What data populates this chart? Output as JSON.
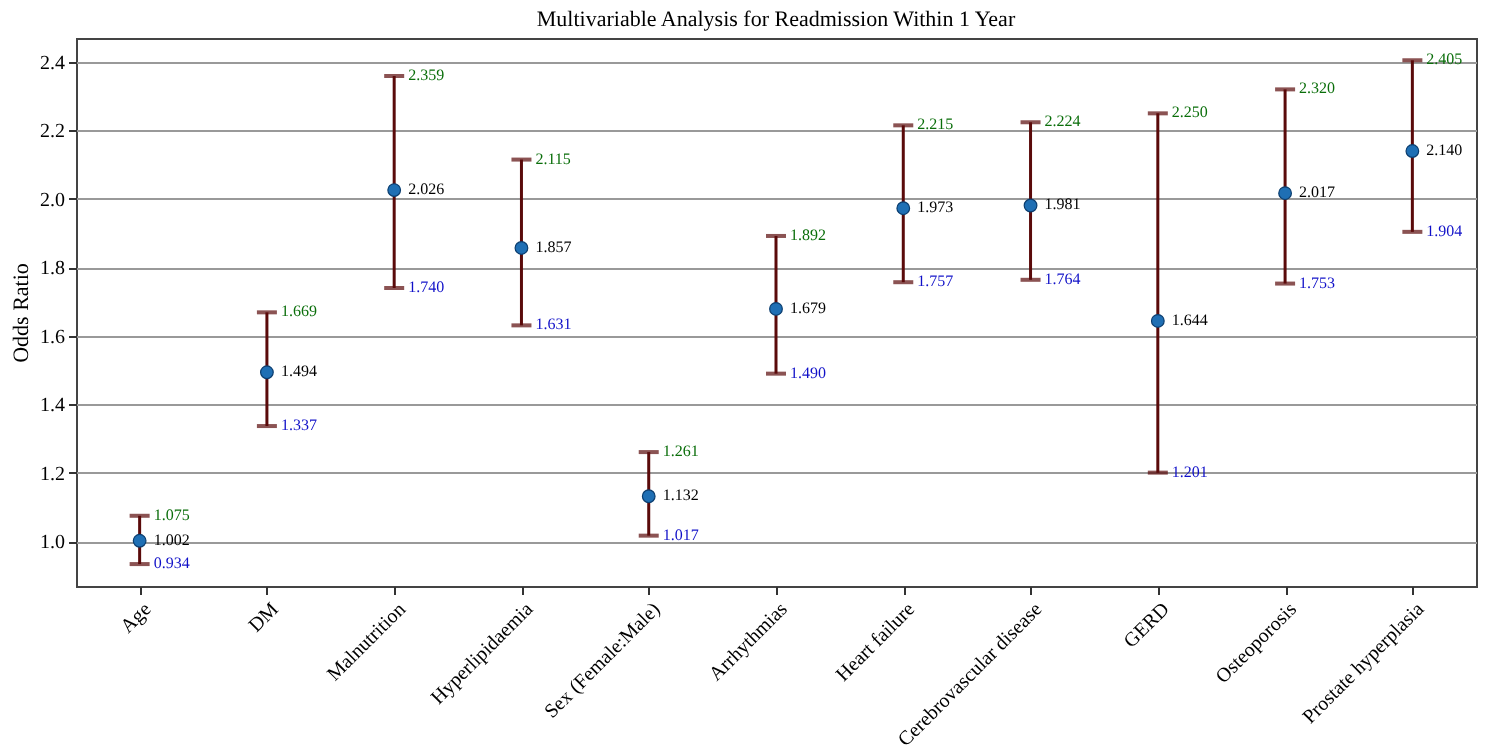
{
  "chart_data": {
    "type": "scatter",
    "title": "Multivariable Analysis for Readmission Within 1 Year",
    "ylabel": "Odds Ratio",
    "categories": [
      "Age",
      "DM",
      "Malnutrition",
      "Hyperlipidaemia",
      "Sex (Female:Male)",
      "Arrhythmias",
      "Heart failure",
      "Cerebrovascular disease",
      "GERD",
      "Osteoporosis",
      "Prostate hyperplasia"
    ],
    "series": [
      {
        "color": "#1f6fb4",
        "values": [
          1.002,
          1.494,
          2.026,
          1.857,
          1.132,
          1.679,
          1.973,
          1.981,
          1.644,
          2.017,
          2.14
        ],
        "value_labels": [
          "1.002",
          "1.494",
          "2.026",
          "1.857",
          "1.132",
          "1.679",
          "1.973",
          "1.981",
          "1.644",
          "2.017",
          "2.140"
        ],
        "errors": [
          [
            0.934,
            1.075
          ],
          [
            1.337,
            1.669
          ],
          [
            1.74,
            2.359
          ],
          [
            1.631,
            2.115
          ],
          [
            1.017,
            1.261
          ],
          [
            1.49,
            1.892
          ],
          [
            1.757,
            2.215
          ],
          [
            1.764,
            2.224
          ],
          [
            1.201,
            2.25
          ],
          [
            1.753,
            2.32
          ],
          [
            1.904,
            2.405
          ]
        ]
      }
    ],
    "annotations": [
      {
        "text": "1.075",
        "x": "Age",
        "y": 1.075
      },
      {
        "text": "0.934",
        "x": "Age",
        "y": 0.934
      },
      {
        "text": "1.669",
        "x": "DM",
        "y": 1.669
      },
      {
        "text": "1.337",
        "x": "DM",
        "y": 1.337
      },
      {
        "text": "2.359",
        "x": "Malnutrition",
        "y": 2.359
      },
      {
        "text": "1.740",
        "x": "Malnutrition",
        "y": 1.74
      },
      {
        "text": "2.115",
        "x": "Hyperlipidaemia",
        "y": 2.115
      },
      {
        "text": "1.631",
        "x": "Hyperlipidaemia",
        "y": 1.631
      },
      {
        "text": "1.261",
        "x": "Sex (Female:Male)",
        "y": 1.261
      },
      {
        "text": "1.017",
        "x": "Sex (Female:Male)",
        "y": 1.017
      },
      {
        "text": "1.892",
        "x": "Arrhythmias",
        "y": 1.892
      },
      {
        "text": "1.490",
        "x": "Arrhythmias",
        "y": 1.49
      },
      {
        "text": "2.215",
        "x": "Heart failure",
        "y": 2.215
      },
      {
        "text": "1.757",
        "x": "Heart failure",
        "y": 1.757
      },
      {
        "text": "2.224",
        "x": "Cerebrovascular disease",
        "y": 2.224
      },
      {
        "text": "1.764",
        "x": "Cerebrovascular disease",
        "y": 1.764
      },
      {
        "text": "2.250",
        "x": "GERD",
        "y": 2.25
      },
      {
        "text": "1.201",
        "x": "GERD",
        "y": 1.201
      },
      {
        "text": "2.320",
        "x": "Osteoporosis",
        "y": 2.32
      },
      {
        "text": "1.753",
        "x": "Osteoporosis",
        "y": 1.753
      },
      {
        "text": "2.405",
        "x": "Prostate hyperplasia",
        "y": 2.405
      },
      {
        "text": "1.904",
        "x": "Prostate hyperplasia",
        "y": 1.904
      }
    ],
    "marker": "circle",
    "grid": "y",
    "ylim": [
      0.87,
      2.47
    ],
    "yticks": [
      {
        "value": 1,
        "label": "1.0"
      },
      1.2,
      1.4,
      1.6,
      1.8,
      {
        "value": 2,
        "label": "2.0"
      },
      2.2,
      2.4
    ]
  }
}
